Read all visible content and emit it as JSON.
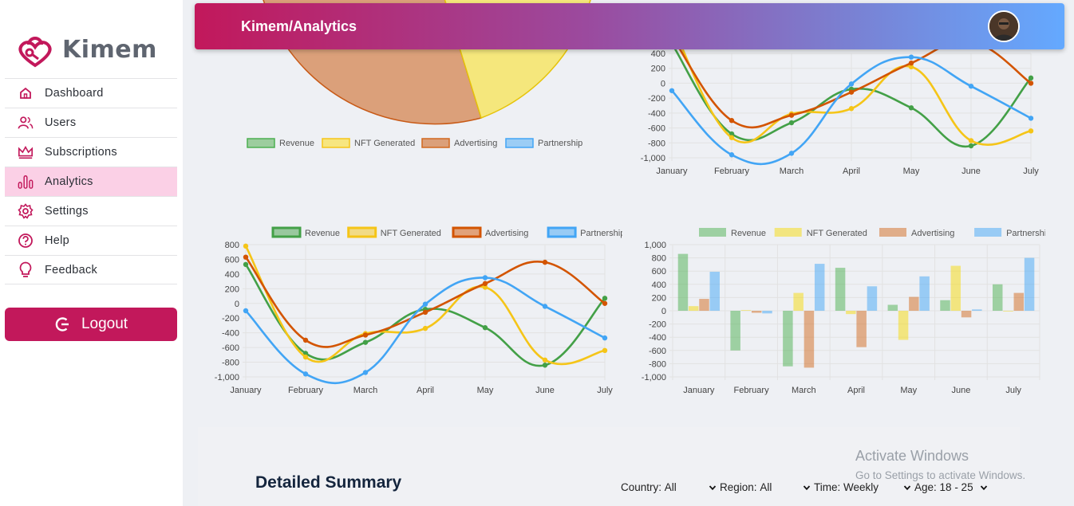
{
  "brand": {
    "name": "Kimem",
    "accent": "#c2185b"
  },
  "sidebar": {
    "items": [
      {
        "label": "Dashboard",
        "icon": "home-icon"
      },
      {
        "label": "Users",
        "icon": "users-icon"
      },
      {
        "label": "Subscriptions",
        "icon": "crown-icon"
      },
      {
        "label": "Analytics",
        "icon": "bar-chart-icon",
        "active": true
      },
      {
        "label": "Settings",
        "icon": "gear-icon"
      },
      {
        "label": "Help",
        "icon": "help-icon"
      },
      {
        "label": "Feedback",
        "icon": "lightbulb-icon"
      }
    ],
    "logout_label": "Logout"
  },
  "header": {
    "title": "Kimem/Analytics"
  },
  "summary": {
    "title": "Detailed Summary",
    "filters": [
      {
        "label": "Country:",
        "value": "All"
      },
      {
        "label": "Region:",
        "value": "All"
      },
      {
        "label": "Time:",
        "value": "Weekly"
      },
      {
        "label": "Age:",
        "value": "18 - 25"
      }
    ]
  },
  "watermark": {
    "line1": "Activate Windows",
    "line2": "Go to Settings to activate Windows."
  },
  "chart_data": [
    {
      "type": "pie",
      "legend": [
        "Revenue",
        "NFT Generated",
        "Advertising",
        "Partnership"
      ],
      "colors": [
        "#4caf50",
        "#f5c518",
        "#d2691e",
        "#42a5f5"
      ],
      "visible_slices": [
        "Advertising",
        "NFT Generated"
      ]
    },
    {
      "type": "line",
      "categories": [
        "January",
        "February",
        "March",
        "April",
        "May",
        "June",
        "July"
      ],
      "ylim": [
        -1000,
        400
      ],
      "yticks": [
        "400",
        "200",
        "0",
        "-200",
        "-400",
        "-600",
        "-800",
        "-1,000"
      ],
      "series": [
        {
          "name": "Revenue",
          "color": "#43a047",
          "values": [
            530,
            -680,
            -530,
            -80,
            -330,
            -840,
            70
          ]
        },
        {
          "name": "NFT Generated",
          "color": "#f5c518",
          "values": [
            780,
            -730,
            -410,
            -340,
            220,
            -770,
            -640
          ]
        },
        {
          "name": "Advertising",
          "color": "#d35400",
          "values": [
            630,
            -500,
            -430,
            -120,
            270,
            560,
            0
          ]
        },
        {
          "name": "Partnership",
          "color": "#42a5f5",
          "values": [
            -100,
            -960,
            -940,
            -10,
            350,
            -40,
            -470
          ]
        }
      ]
    },
    {
      "type": "line",
      "legend": [
        "Revenue",
        "NFT Generated",
        "Advertising",
        "Partnership"
      ],
      "categories": [
        "January",
        "February",
        "March",
        "April",
        "May",
        "June",
        "July"
      ],
      "ylim": [
        -1000,
        800
      ],
      "yticks": [
        "800",
        "600",
        "400",
        "200",
        "0",
        "-200",
        "-400",
        "-600",
        "-800",
        "-1,000"
      ],
      "series": [
        {
          "name": "Revenue",
          "color": "#43a047",
          "values": [
            530,
            -680,
            -530,
            -80,
            -330,
            -840,
            70
          ]
        },
        {
          "name": "NFT Generated",
          "color": "#f5c518",
          "values": [
            780,
            -730,
            -410,
            -340,
            220,
            -770,
            -640
          ]
        },
        {
          "name": "Advertising",
          "color": "#d35400",
          "values": [
            630,
            -500,
            -430,
            -120,
            270,
            560,
            0
          ]
        },
        {
          "name": "Partnership",
          "color": "#42a5f5",
          "values": [
            -100,
            -960,
            -940,
            -10,
            350,
            -40,
            -470
          ]
        }
      ]
    },
    {
      "type": "bar",
      "legend": [
        "Revenue",
        "NFT Generated",
        "Advertising",
        "Partnership"
      ],
      "categories": [
        "January",
        "February",
        "March",
        "April",
        "May",
        "June",
        "July"
      ],
      "ylim": [
        -1000,
        1000
      ],
      "yticks": [
        "1,000",
        "800",
        "600",
        "400",
        "200",
        "0",
        "-200",
        "-400",
        "-600",
        "-800",
        "-1,000"
      ],
      "series": [
        {
          "name": "Revenue",
          "color": "#4caf50",
          "values": [
            860,
            -600,
            -840,
            650,
            90,
            160,
            400
          ]
        },
        {
          "name": "NFT Generated",
          "color": "#f5d90a",
          "values": [
            70,
            10,
            270,
            -50,
            -440,
            680,
            -10
          ]
        },
        {
          "name": "Advertising",
          "color": "#d2691e",
          "values": [
            180,
            -30,
            -860,
            -550,
            210,
            -100,
            270
          ]
        },
        {
          "name": "Partnership",
          "color": "#42a5f5",
          "values": [
            590,
            -40,
            710,
            370,
            520,
            20,
            800
          ]
        }
      ]
    }
  ]
}
